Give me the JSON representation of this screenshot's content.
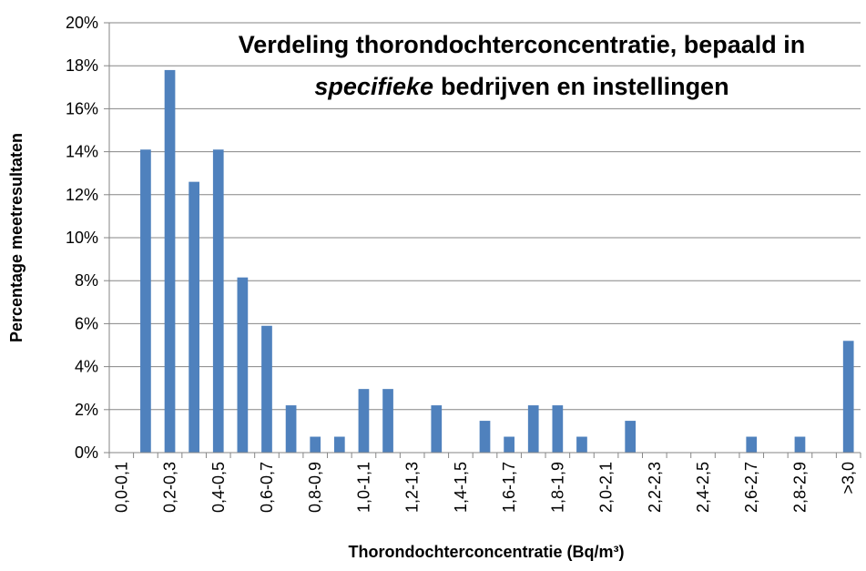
{
  "chart_data": {
    "type": "bar",
    "title": [
      "Verdeling thorondochterconcentratie, bepaald in",
      "specifieke",
      "bedrijven en instellingen"
    ],
    "x_label": "Thorondochterconcentratie (Bq/m³)",
    "y_label": "Percentage meetresultaten",
    "categories": [
      "0,0-0,1",
      null,
      "0,2-0,3",
      null,
      "0,4-0,5",
      null,
      "0,6-0,7",
      null,
      "0,8-0,9",
      null,
      "1,0-1,1",
      null,
      "1,2-1,3",
      null,
      "1,4-1,5",
      null,
      "1,6-1,7",
      null,
      "1,8-1,9",
      null,
      "2,0-2,1",
      null,
      "2,2-2,3",
      null,
      "2,4-2,5",
      null,
      "2,6-2,7",
      null,
      "2,8-2,9",
      null,
      ">3,0"
    ],
    "values": [
      0,
      14.1,
      17.8,
      12.6,
      14.1,
      8.15,
      5.9,
      2.2,
      0.74,
      0.74,
      2.96,
      2.96,
      0,
      2.2,
      0,
      1.48,
      0.74,
      2.2,
      2.2,
      0.74,
      0,
      1.48,
      0,
      0,
      0,
      0,
      0.74,
      0,
      0.74,
      0,
      5.2
    ],
    "color": "#4f81bd",
    "ylim": [
      0,
      20
    ],
    "yticks": [
      {
        "value": 0,
        "label": "0%"
      },
      {
        "value": 2,
        "label": "2%"
      },
      {
        "value": 4,
        "label": "4%"
      },
      {
        "value": 6,
        "label": "6%"
      },
      {
        "value": 8,
        "label": "8%"
      },
      {
        "value": 10,
        "label": "10%"
      },
      {
        "value": 12,
        "label": "12%"
      },
      {
        "value": 14,
        "label": "14%"
      },
      {
        "value": 16,
        "label": "16%"
      },
      {
        "value": 18,
        "label": "18%"
      },
      {
        "value": 20,
        "label": "20%"
      }
    ],
    "grid": true
  }
}
